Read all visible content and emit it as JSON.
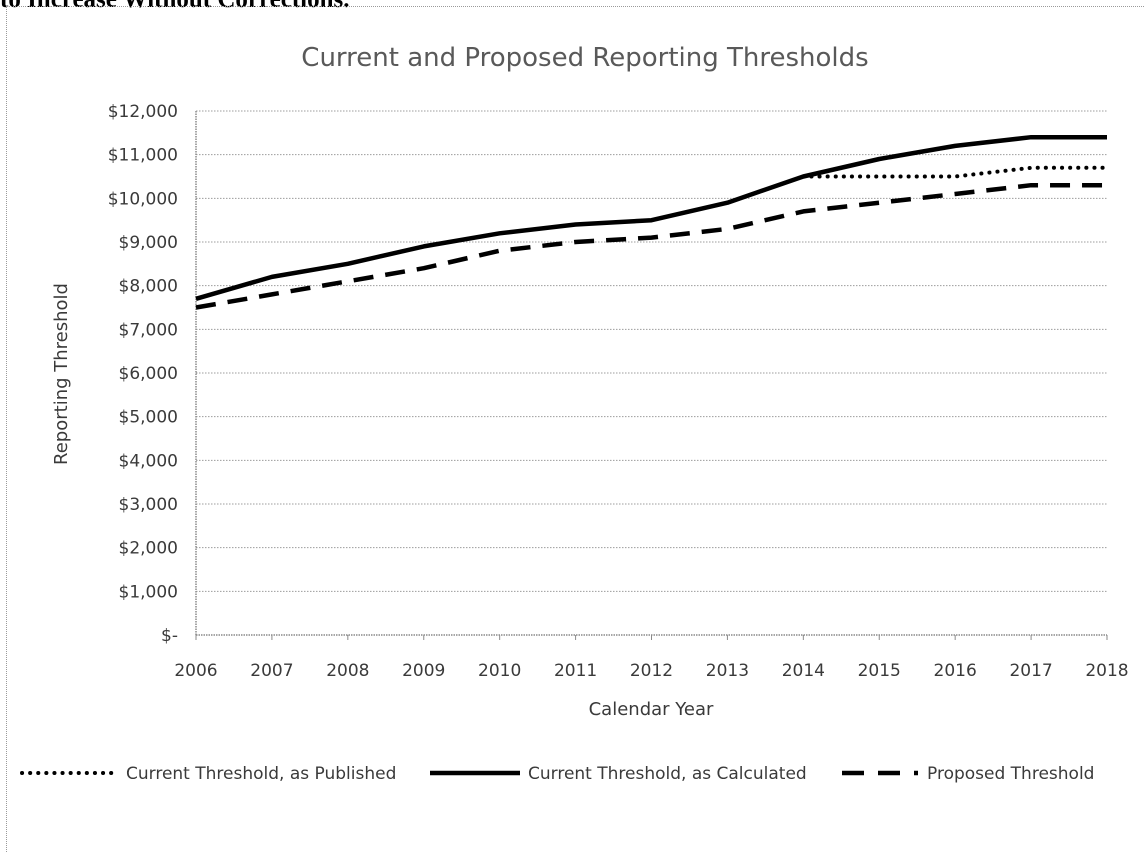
{
  "page": {
    "heading": "to Increase Without Corrections."
  },
  "chart_data": {
    "type": "line",
    "title": "Current and Proposed Reporting Thresholds",
    "xlabel": "Calendar Year",
    "ylabel": "Reporting Threshold",
    "x": [
      2006,
      2007,
      2008,
      2009,
      2010,
      2011,
      2012,
      2013,
      2014,
      2015,
      2016,
      2017,
      2018
    ],
    "ylim": [
      0,
      12000
    ],
    "yticks": [
      0,
      1000,
      2000,
      3000,
      4000,
      5000,
      6000,
      7000,
      8000,
      9000,
      10000,
      11000,
      12000
    ],
    "ytick_labels": [
      "$-",
      "$1,000",
      "$2,000",
      "$3,000",
      "$4,000",
      "$5,000",
      "$6,000",
      "$7,000",
      "$8,000",
      "$9,000",
      "$10,000",
      "$11,000",
      "$12,000"
    ],
    "grid": true,
    "legend_position": "bottom",
    "series": [
      {
        "name": "Current Threshold, as Published",
        "style": "dotted",
        "color": "#000000",
        "x": [
          2014,
          2015,
          2016,
          2017,
          2018
        ],
        "values": [
          10500,
          10500,
          10500,
          10700,
          10700
        ]
      },
      {
        "name": "Current Threshold, as Calculated",
        "style": "solid",
        "color": "#000000",
        "x": [
          2006,
          2007,
          2008,
          2009,
          2010,
          2011,
          2012,
          2013,
          2014,
          2015,
          2016,
          2017,
          2018
        ],
        "values": [
          7700,
          8200,
          8500,
          8900,
          9200,
          9400,
          9500,
          9900,
          10500,
          10900,
          11200,
          11400,
          11400
        ]
      },
      {
        "name": "Proposed Threshold",
        "style": "dashed",
        "color": "#000000",
        "x": [
          2006,
          2007,
          2008,
          2009,
          2010,
          2011,
          2012,
          2013,
          2014,
          2015,
          2016,
          2017,
          2018
        ],
        "values": [
          7500,
          7800,
          8100,
          8400,
          8800,
          9000,
          9100,
          9300,
          9700,
          9900,
          10100,
          10300,
          10300
        ]
      }
    ]
  }
}
